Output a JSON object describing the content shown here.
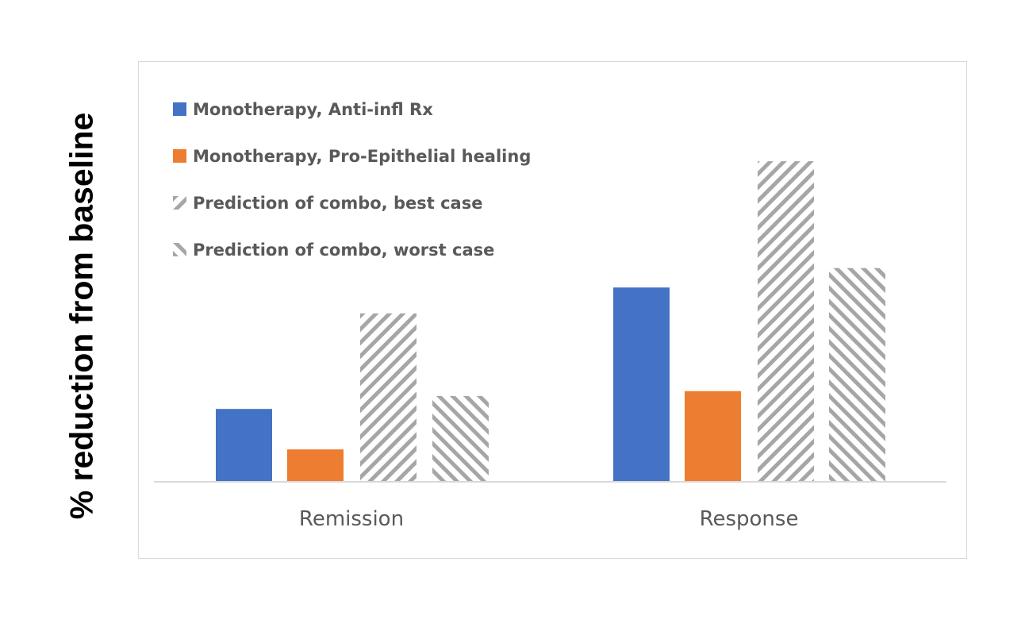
{
  "chart_data": {
    "type": "bar",
    "ylabel": "% reduction from baseline",
    "xlabel": "",
    "title": "",
    "categories": [
      "Remission",
      "Response"
    ],
    "ylim": [
      0,
      100
    ],
    "legend_position": "top-left",
    "grid": false,
    "axis_tick_labels_shown": false,
    "series": [
      {
        "name": "Monotherapy, Anti-infl Rx",
        "values": [
          22.5,
          60
        ],
        "color": "#4472c4",
        "fill": "solid"
      },
      {
        "name": "Monotherapy, Pro-Epithelial healing",
        "values": [
          10,
          28
        ],
        "color": "#ed7d31",
        "fill": "solid"
      },
      {
        "name": "Prediction of combo, best case",
        "values": [
          52,
          99
        ],
        "color": "#a6a6a6",
        "fill": "hatch-forward"
      },
      {
        "name": "Prediction of combo, worst case",
        "values": [
          26.5,
          66
        ],
        "color": "#a6a6a6",
        "fill": "hatch-backward"
      }
    ]
  }
}
